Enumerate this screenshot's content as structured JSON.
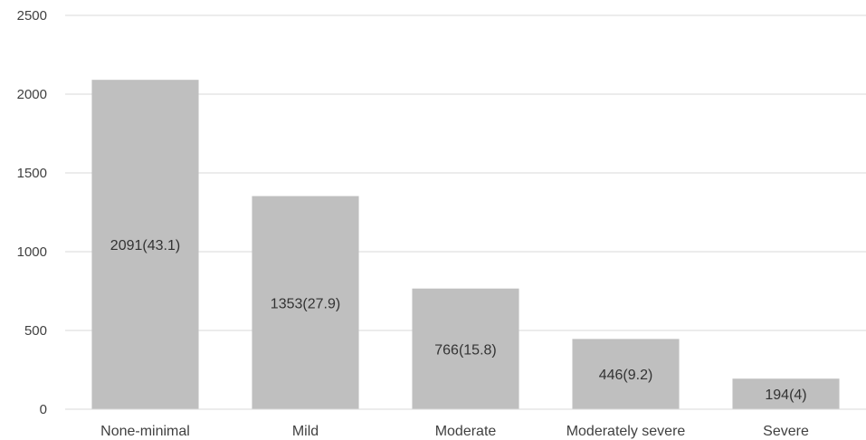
{
  "chart_data": {
    "type": "bar",
    "categories": [
      "None-minimal",
      "Mild",
      "Moderate",
      "Moderately severe",
      "Severe"
    ],
    "values": [
      2091,
      1353,
      766,
      446,
      194
    ],
    "data_labels": [
      "2091(43.1)",
      "1353(27.9)",
      "766(15.8)",
      "446(9.2)",
      "194(4)"
    ],
    "ylim": [
      0,
      2500
    ],
    "yticks": [
      0,
      500,
      1000,
      1500,
      2000,
      2500
    ],
    "grid": true,
    "legend": "none",
    "title": "",
    "xlabel": "",
    "ylabel": "",
    "colors": {
      "bar": "#bfbfbf",
      "grid": "#d9d9d9",
      "text": "#404040"
    }
  }
}
